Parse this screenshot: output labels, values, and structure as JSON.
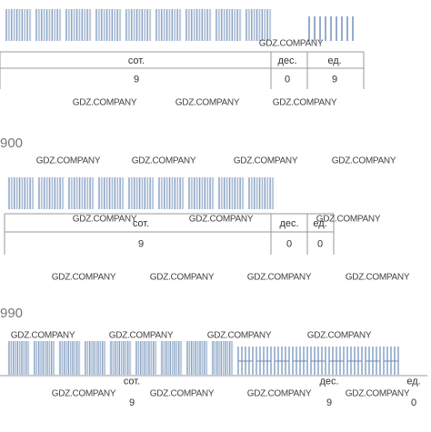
{
  "sections": [
    {
      "table": {
        "headers": [
          "сот.",
          "дес.",
          "ед."
        ],
        "values": [
          9,
          0,
          9
        ]
      }
    },
    {
      "number": "900",
      "table": {
        "headers": [
          "сот.",
          "дес.",
          "ед."
        ],
        "values": [
          9,
          0,
          0
        ]
      }
    },
    {
      "number": "990",
      "table": {
        "headers": [
          "сот.",
          "дес.",
          "ед."
        ],
        "values": [
          9,
          9,
          0
        ]
      }
    }
  ],
  "watermarks": [
    "GDZ.COMPANY",
    "GDZ.COMPANY",
    "GDZ.COMPANY",
    "GDZ.COMPANY",
    "GDZ.COMPANY",
    "GDZ.COMPANY",
    "GDZ.COMPANY",
    "GDZ.COMPANY",
    "GDZ.COMPANY",
    "GDZ.COMPANY",
    "GDZ.COMPANY",
    "GDZ.COMPANY",
    "GDZ.COMPANY",
    "GDZ.COMPANY",
    "GDZ.COMPANY",
    "GDZ.COMPANY",
    "GDZ.COMPANY",
    "GDZ.COMPANY",
    "GDZ.COMPANY",
    "GDZ.COMPANY",
    "GDZ.COMPANY",
    "GDZ.COMPANY",
    "GDZ.COMPANY"
  ]
}
